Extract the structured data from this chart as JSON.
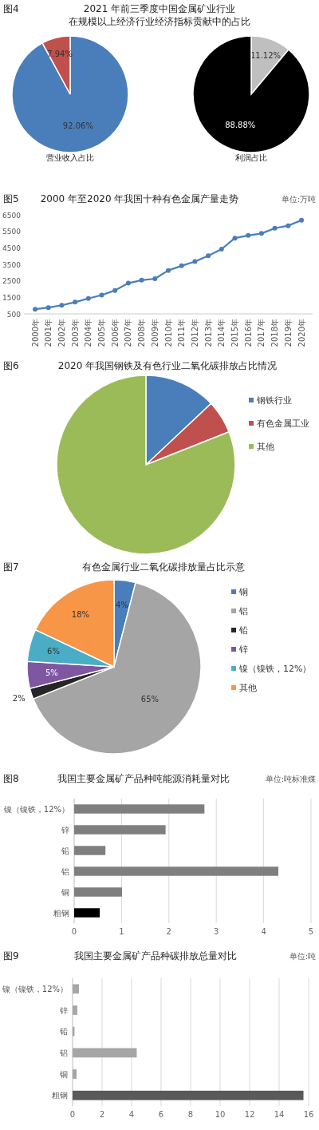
{
  "chart_data": [
    {
      "type": "pie",
      "title": "2021 年前三季度中国金属矿业行业",
      "subtitle": "在规模以上经济行业经济指标贡献中的占比",
      "annotations": [
        "图4"
      ],
      "xlabel": "营业收入占比",
      "categories": [
        null,
        null
      ],
      "values": [
        92.06,
        7.94
      ],
      "colors": [
        "#4a7ebb",
        "#c0504d"
      ],
      "value_labels": [
        "92.06%",
        "7.94%"
      ]
    },
    {
      "type": "pie",
      "xlabel": "利润占比",
      "categories": [
        null,
        null
      ],
      "values": [
        11.12,
        88.88
      ],
      "colors": [
        "#bfbfbf",
        "#000000"
      ],
      "value_labels": [
        "11.12%",
        "88.88%"
      ]
    },
    {
      "type": "line",
      "title": "2000 年至2020 年我国十种有色金属产量走势",
      "annotations": [
        "图5",
        "单位:万吨"
      ],
      "categories": [
        "2000年",
        "2001年",
        "2002年",
        "2003年",
        "2004年",
        "2005年",
        "2006年",
        "2007年",
        "2008年",
        "2009年",
        "2010年",
        "2011年",
        "2012年",
        "2013年",
        "2014年",
        "2015年",
        "2016年",
        "2017年",
        "2018年",
        "2019年",
        "2020年"
      ],
      "values": [
        780,
        880,
        1020,
        1210,
        1430,
        1640,
        1920,
        2360,
        2540,
        2630,
        3130,
        3410,
        3670,
        4020,
        4420,
        5090,
        5250,
        5370,
        5690,
        5840,
        6170
      ],
      "color": "#4a7ebb",
      "marker": "circle",
      "ylim": [
        500,
        6500
      ],
      "yticks": [
        500,
        1500,
        2500,
        3500,
        4500,
        5500,
        6500
      ]
    },
    {
      "type": "pie",
      "title": "2020 年我国钢铁及有色行业二氧化碳排放占比情况",
      "annotations": [
        "图6"
      ],
      "categories": [
        "钢铁行业",
        "有色金属工业",
        "其他"
      ],
      "values": [
        13,
        6,
        81
      ],
      "colors": [
        "#4a7ebb",
        "#c0504d",
        "#9bbb59"
      ],
      "legend": "right"
    },
    {
      "type": "pie",
      "title": "有色金属行业二氧化碳排放量占比示意",
      "annotations": [
        "图7"
      ],
      "categories": [
        "铜",
        "铝",
        "铅",
        "锌",
        "镍（镍铁，12%）",
        "其他"
      ],
      "values": [
        4,
        65,
        2,
        5,
        6,
        18
      ],
      "colors": [
        "#4a7ebb",
        "#a5a5a5",
        "#262626",
        "#7e57a0",
        "#4bacc6",
        "#f79646"
      ],
      "value_labels": [
        "4%",
        "65%",
        "2%",
        "5%",
        "6%",
        "18%"
      ],
      "legend": "right"
    },
    {
      "type": "bar",
      "orientation": "horizontal",
      "title": "我国主要金属矿产品种吨能源消耗量对比",
      "annotations": [
        "图8",
        "单位:吨标准煤"
      ],
      "categories": [
        "镍（镍铁，12%）",
        "锌",
        "铅",
        "铝",
        "铜",
        "粗钢"
      ],
      "values": [
        2.75,
        1.93,
        0.66,
        4.31,
        1.01,
        0.54
      ],
      "colors": [
        "#7f7f7f",
        "#7f7f7f",
        "#7f7f7f",
        "#7f7f7f",
        "#7f7f7f",
        "#000000"
      ],
      "xlim": [
        0,
        5
      ],
      "xticks": [
        0,
        1,
        2,
        3,
        4,
        5
      ],
      "grid": "x"
    },
    {
      "type": "bar",
      "orientation": "horizontal",
      "title": "我国主要金属矿产品种碳排放总量对比",
      "annotations": [
        "图9",
        "单位:吨"
      ],
      "categories": [
        "镍（镍铁，12%）",
        "锌",
        "铅",
        "铝",
        "铜",
        "粗钢"
      ],
      "values": [
        0.43,
        0.32,
        0.13,
        4.35,
        0.27,
        15.65
      ],
      "colors": [
        "#a6a6a6",
        "#a6a6a6",
        "#a6a6a6",
        "#a6a6a6",
        "#a6a6a6",
        "#595959"
      ],
      "xlim": [
        0,
        16
      ],
      "xticks": [
        0,
        2,
        4,
        6,
        8,
        10,
        12,
        14,
        16
      ],
      "grid": "x"
    }
  ]
}
